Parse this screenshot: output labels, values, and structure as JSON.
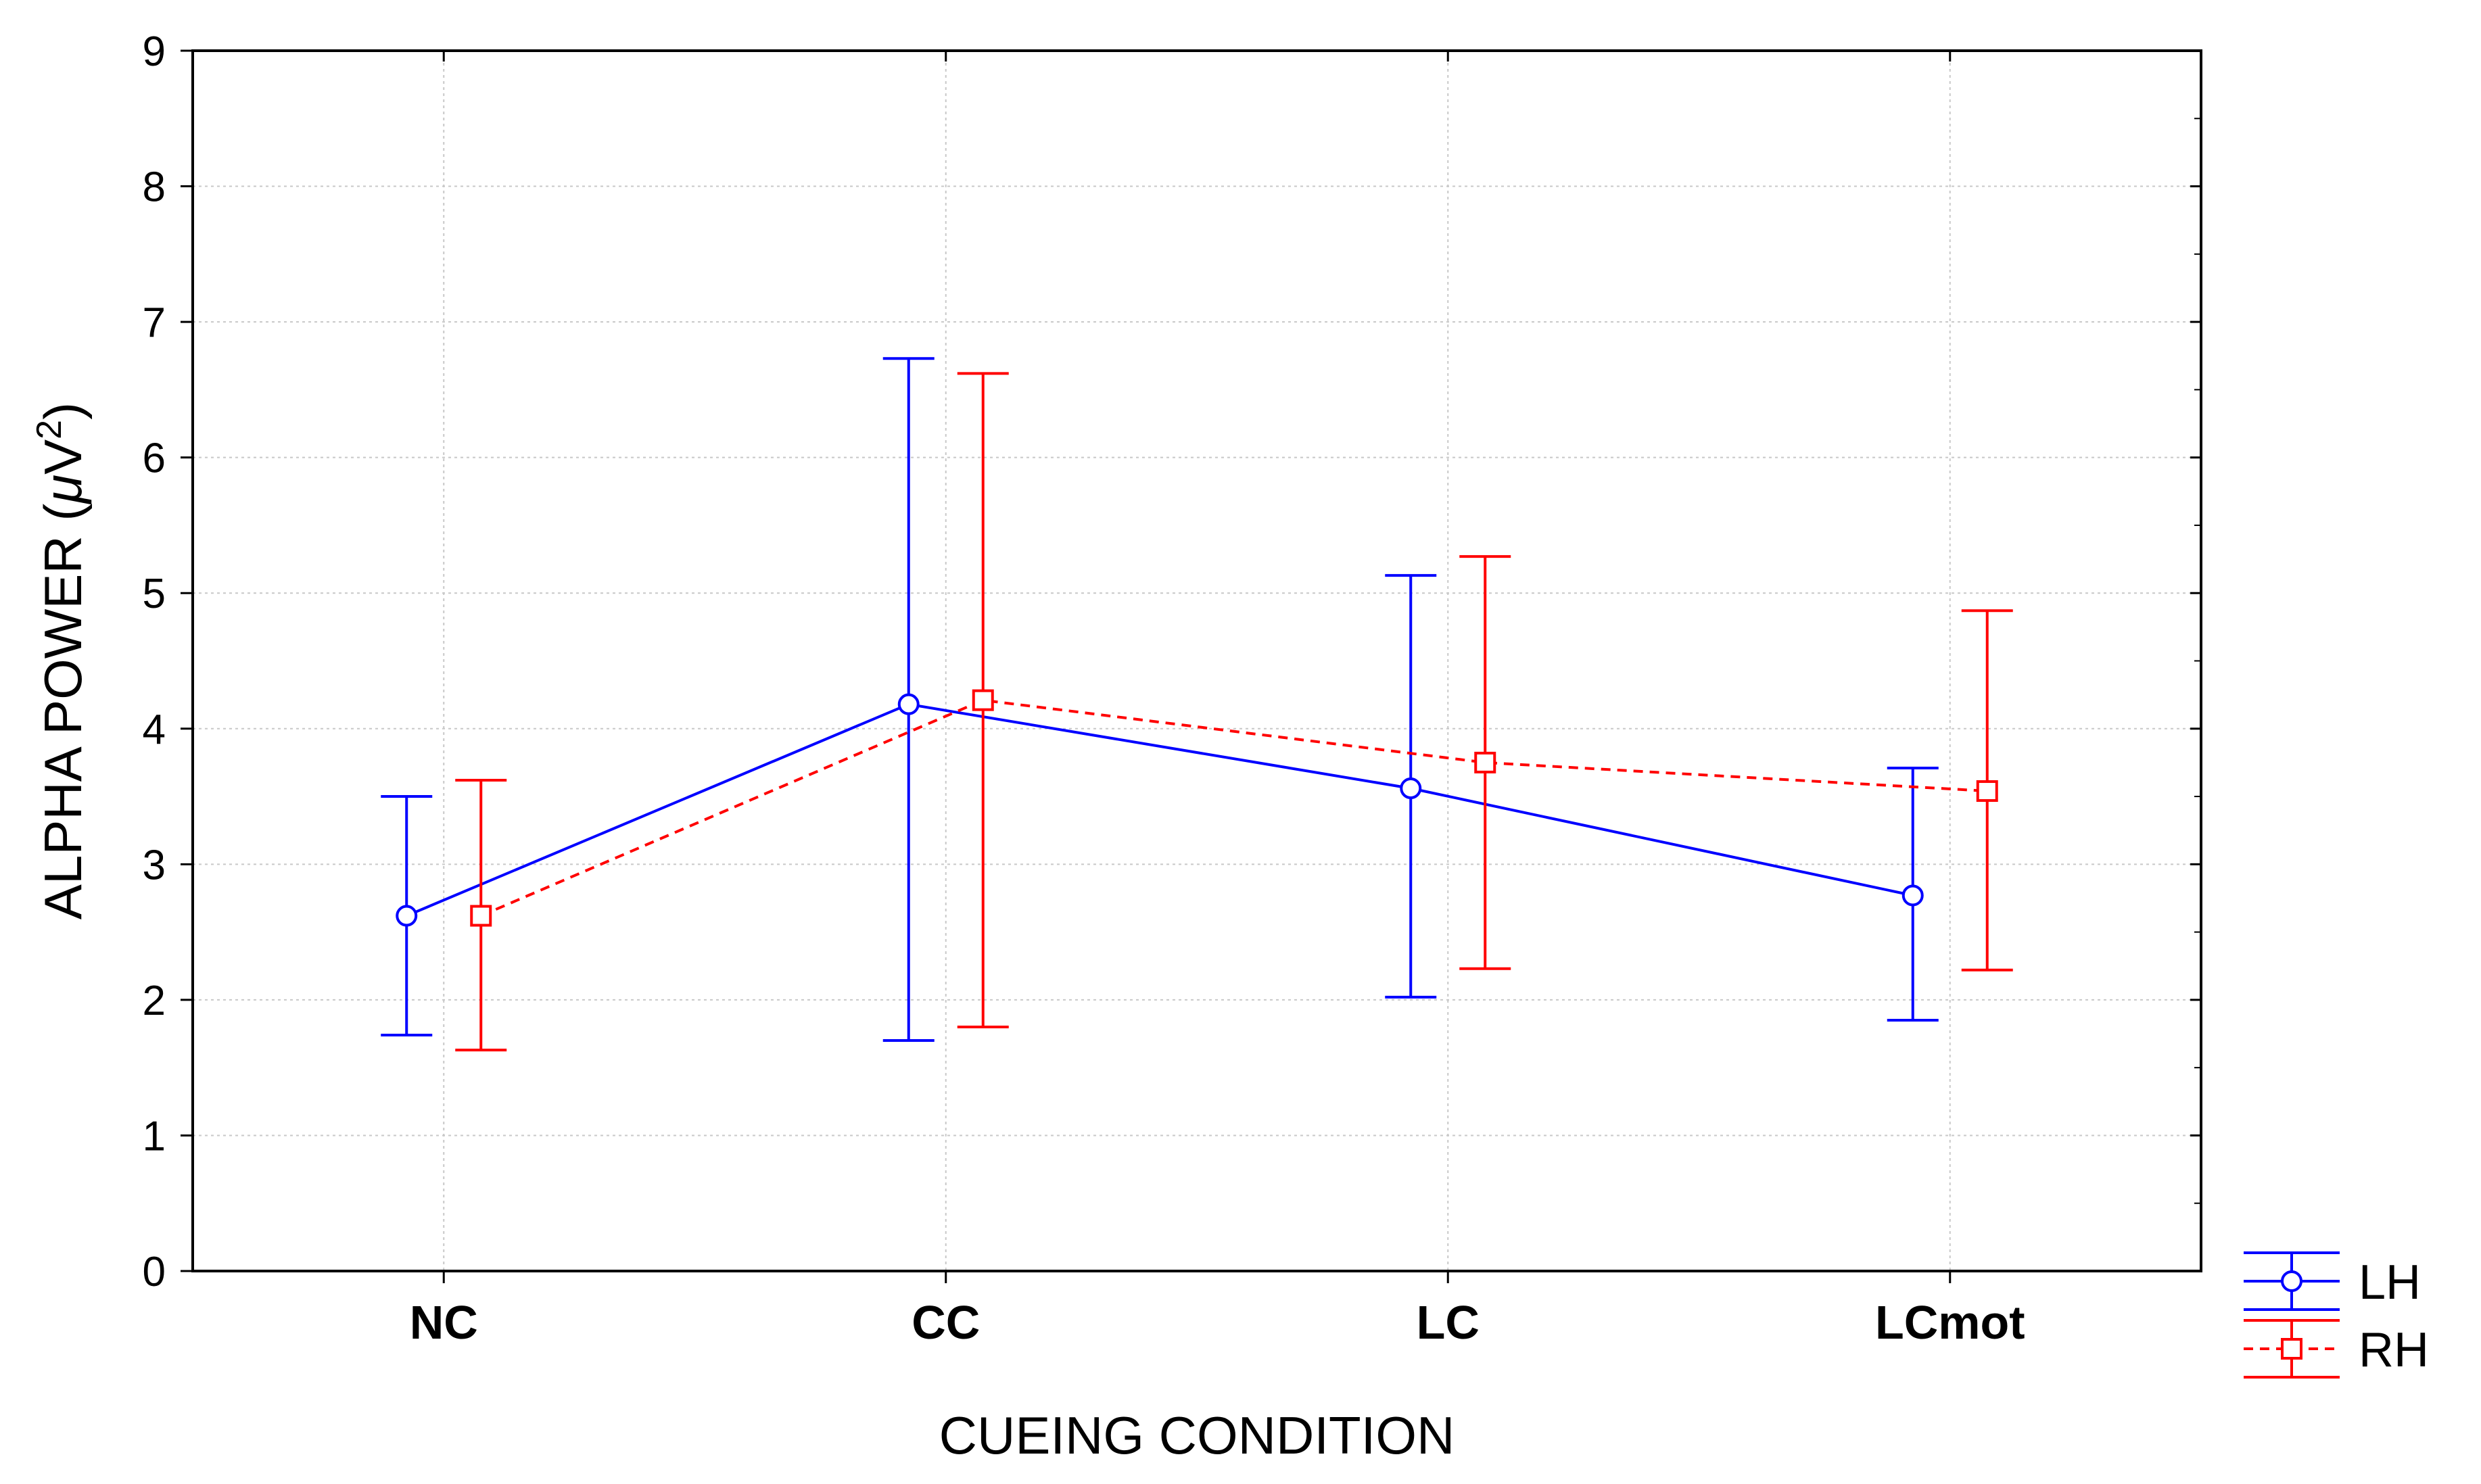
{
  "chart_data": {
    "type": "line",
    "title": "",
    "xlabel": "CUEING CONDITION",
    "ylabel": {
      "main": "ALPHA POWER (",
      "mu": "μ",
      "unit": "V",
      "sup": "2",
      "close": ")"
    },
    "categories": [
      "NC",
      "CC",
      "LC",
      "LCmot"
    ],
    "ylim": [
      0,
      9
    ],
    "yticks": [
      "0",
      "1",
      "2",
      "3",
      "4",
      "5",
      "6",
      "7",
      "8",
      "9"
    ],
    "grid": true,
    "legend_position": "bottom-right outside",
    "series": [
      {
        "name": "LH",
        "color": "#0000ff",
        "marker": "circle",
        "line_style": "solid",
        "values": [
          2.62,
          4.18,
          3.56,
          2.77
        ],
        "lower": [
          1.74,
          1.7,
          2.02,
          1.85
        ],
        "upper": [
          3.5,
          6.73,
          5.13,
          3.71
        ]
      },
      {
        "name": "RH",
        "color": "#ff0000",
        "marker": "square",
        "line_style": "dashed",
        "values": [
          2.62,
          4.21,
          3.75,
          3.54
        ],
        "lower": [
          1.63,
          1.8,
          2.23,
          2.22
        ],
        "upper": [
          3.62,
          6.62,
          5.27,
          4.87
        ]
      }
    ]
  }
}
